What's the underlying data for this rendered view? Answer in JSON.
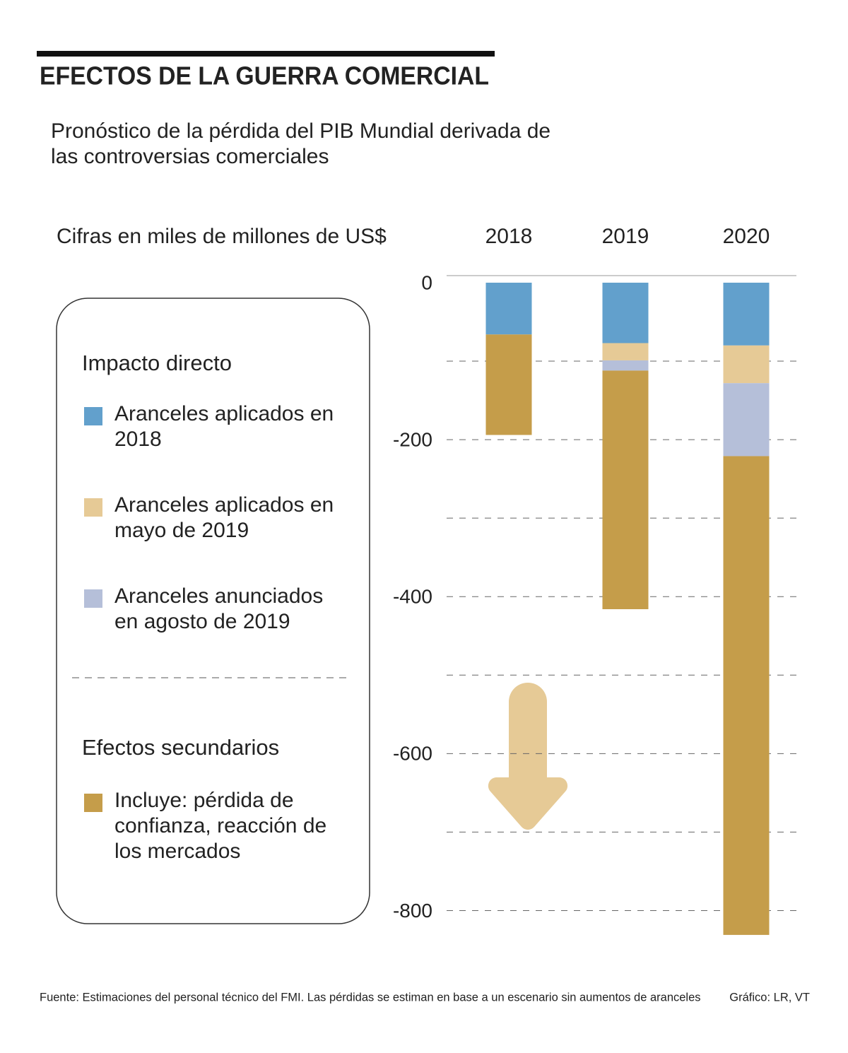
{
  "chart_data": {
    "type": "stacked_bar",
    "title": "EFECTOS DE LA GUERRA COMERCIAL",
    "subtitle": "Pronóstico de la pérdida del PIB Mundial derivada de las controversias comerciales",
    "y_label": "Cifras en miles de millones de US$",
    "categories": [
      "2018",
      "2019",
      "2020"
    ],
    "series": [
      {
        "name": "Aranceles aplicados en 2018",
        "color": "#62a0cc",
        "values": [
          -66,
          -77,
          -80
        ]
      },
      {
        "name": "Aranceles aplicados en mayo de 2019",
        "color": "#e6ca96",
        "values": [
          0,
          -22,
          -48
        ]
      },
      {
        "name": "Aranceles anunciados en agosto de 2019",
        "color": "#b5bfd9",
        "values": [
          0,
          -13,
          -93
        ]
      },
      {
        "name": "Incluye: pérdida de confianza, reacción de los mercados",
        "color": "#c59d4a",
        "values": [
          -128,
          -304,
          -610
        ]
      }
    ],
    "legend_groups": [
      {
        "title": "Impacto directo",
        "series": [
          0,
          1,
          2
        ]
      },
      {
        "title": "Efectos secundarios",
        "series": [
          3
        ]
      }
    ],
    "ylim": [
      0,
      -850
    ],
    "yticks": [
      0,
      -200,
      -400,
      -600,
      -800
    ],
    "minor_yticks": [
      -100,
      -300,
      -500,
      -700
    ],
    "grid": true,
    "source": "Fuente: Estimaciones del personal técnico del FMI. Las pérdidas se estiman en base a un escenario sin aumentos de aranceles",
    "credit": "Gráfico: LR, VT"
  }
}
